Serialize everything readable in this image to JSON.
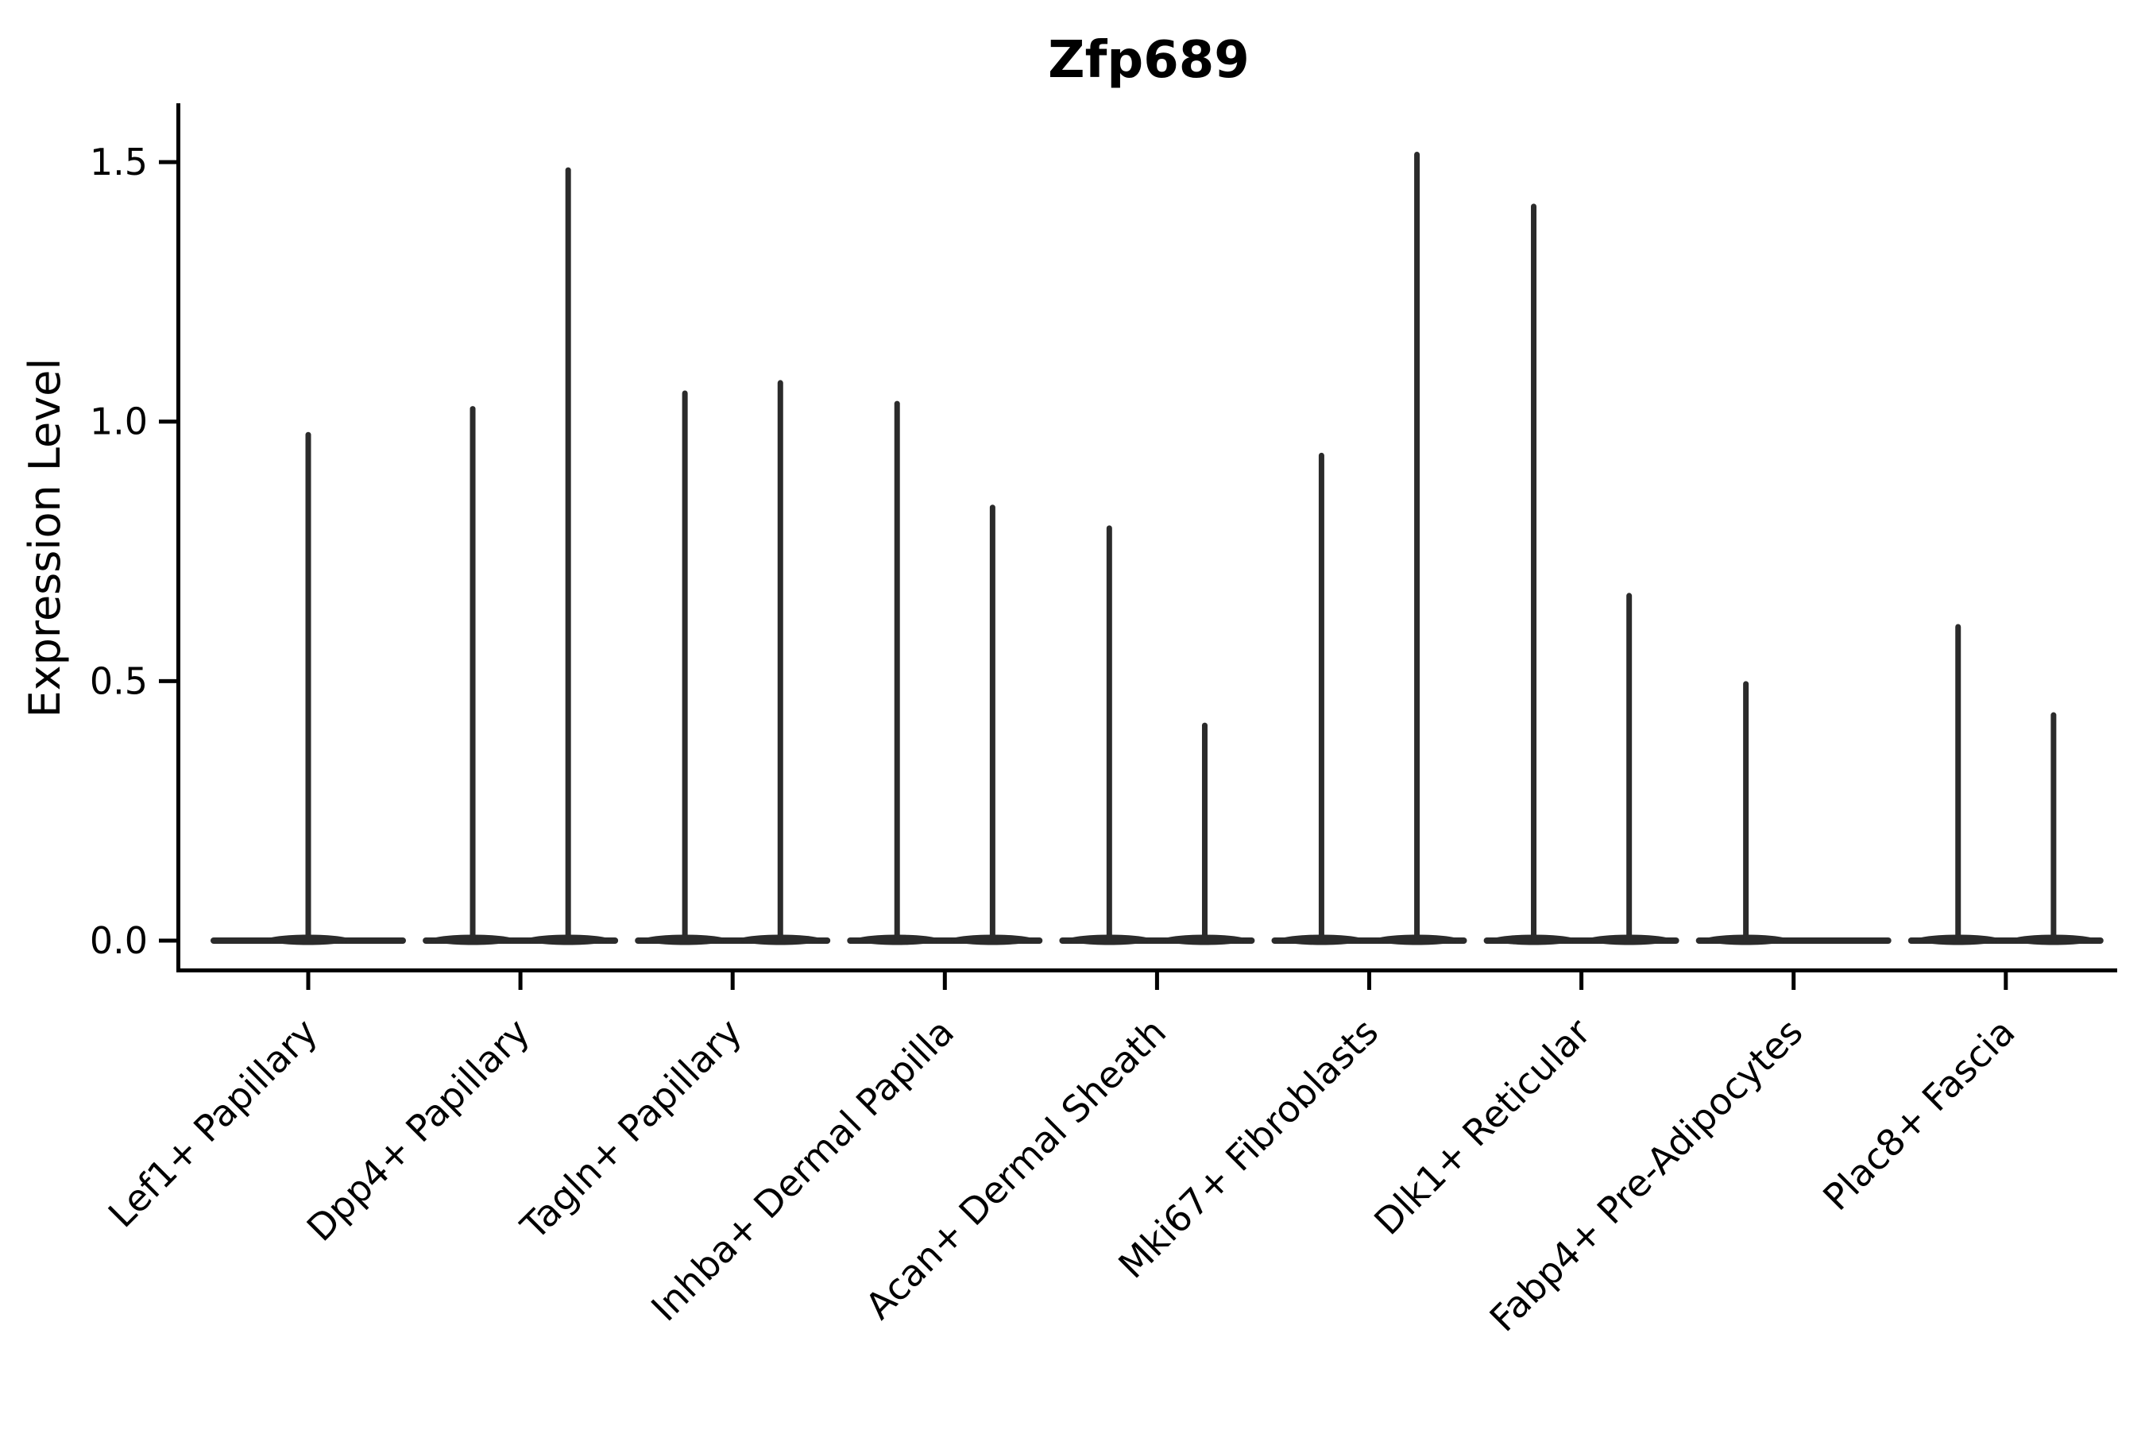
{
  "title": "Zfp689",
  "y_axis": {
    "label": "Expression Level",
    "tick_labels": [
      "0.0",
      "0.5",
      "1.0",
      "1.5"
    ]
  },
  "chart_data": {
    "type": "violin",
    "title": "Zfp689",
    "ylabel": "Expression Level",
    "xlabel": "",
    "ylim": [
      0,
      1.55
    ],
    "yticks": [
      0.0,
      0.5,
      1.0,
      1.5
    ],
    "grid": false,
    "legend": "none",
    "x_label_rotation_deg": 45,
    "description": "Single-cell gene expression violin plot; expression is mostly zero in every cluster so each violin collapses to a wide baseline at 0 with a thin spike up to the cluster's maximum expression value. Most clusters show two dodged violins (two spikes); Lef1+ Papillary shows one centered violin and Fabp4+ Pre-Adipocytes shows only the left violin spike.",
    "categories": [
      "Lef1+ Papillary",
      "Dpp4+ Papillary",
      "Tagln+ Papillary",
      "Inhba+ Dermal Papilla",
      "Acan+ Dermal Sheath",
      "Mki67+ Fibroblasts",
      "Dlk1+ Reticular",
      "Fabp4+ Pre-Adipocytes",
      "Plac8+ Fascia"
    ],
    "violins": [
      {
        "category": "Lef1+ Papillary",
        "spikes": [
          {
            "offset": 0.0,
            "max_expression": 0.98
          }
        ]
      },
      {
        "category": "Dpp4+ Papillary",
        "spikes": [
          {
            "offset": -0.225,
            "max_expression": 1.03
          },
          {
            "offset": 0.225,
            "max_expression": 1.49
          }
        ]
      },
      {
        "category": "Tagln+ Papillary",
        "spikes": [
          {
            "offset": -0.225,
            "max_expression": 1.06
          },
          {
            "offset": 0.225,
            "max_expression": 1.08
          }
        ]
      },
      {
        "category": "Inhba+ Dermal Papilla",
        "spikes": [
          {
            "offset": -0.225,
            "max_expression": 1.04
          },
          {
            "offset": 0.225,
            "max_expression": 0.84
          }
        ]
      },
      {
        "category": "Acan+ Dermal Sheath",
        "spikes": [
          {
            "offset": -0.225,
            "max_expression": 0.8
          },
          {
            "offset": 0.225,
            "max_expression": 0.42
          }
        ]
      },
      {
        "category": "Mki67+ Fibroblasts",
        "spikes": [
          {
            "offset": -0.225,
            "max_expression": 0.94
          },
          {
            "offset": 0.225,
            "max_expression": 1.52
          }
        ]
      },
      {
        "category": "Dlk1+ Reticular",
        "spikes": [
          {
            "offset": -0.225,
            "max_expression": 1.42
          },
          {
            "offset": 0.225,
            "max_expression": 0.67
          }
        ]
      },
      {
        "category": "Fabp4+ Pre-Adipocytes",
        "spikes": [
          {
            "offset": -0.225,
            "max_expression": 0.5
          }
        ]
      },
      {
        "category": "Plac8+ Fascia",
        "spikes": [
          {
            "offset": -0.225,
            "max_expression": 0.61
          },
          {
            "offset": 0.225,
            "max_expression": 0.44
          }
        ]
      }
    ],
    "colors": {
      "violin_stroke": "#2b2b2b",
      "axis": "#000000",
      "text": "#000000",
      "background": "#ffffff"
    }
  }
}
